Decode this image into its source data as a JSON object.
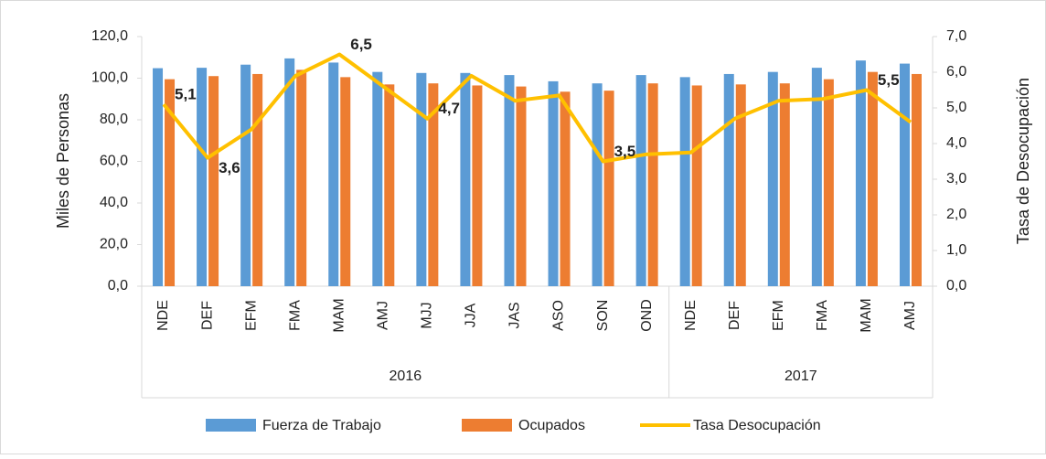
{
  "chart_data": {
    "type": "bar-line",
    "categories": [
      "NDE",
      "DEF",
      "EFM",
      "FMA",
      "MAM",
      "AMJ",
      "MJJ",
      "JJA",
      "JAS",
      "ASO",
      "SON",
      "OND",
      "NDE",
      "DEF",
      "EFM",
      "FMA",
      "MAM",
      "AMJ"
    ],
    "x_groups": [
      {
        "label": "2016",
        "count": 12
      },
      {
        "label": "2017",
        "count": 6
      }
    ],
    "ylabel": "Miles de Personas",
    "y2label": "Tasa de Desocupación",
    "ylim": [
      0,
      120
    ],
    "yticks": [
      {
        "value": 0,
        "label": "0,0"
      },
      {
        "value": 20,
        "label": "20,0"
      },
      {
        "value": 40,
        "label": "40,0"
      },
      {
        "value": 60,
        "label": "60,0"
      },
      {
        "value": 80,
        "label": "80,0"
      },
      {
        "value": 100,
        "label": "100,0"
      },
      {
        "value": 120,
        "label": "120,0"
      }
    ],
    "y2lim": [
      0,
      7
    ],
    "y2ticks": [
      {
        "value": 0,
        "label": "0,0"
      },
      {
        "value": 1,
        "label": "1,0"
      },
      {
        "value": 2,
        "label": "2,0"
      },
      {
        "value": 3,
        "label": "3,0"
      },
      {
        "value": 4,
        "label": "4,0"
      },
      {
        "value": 5,
        "label": "5,0"
      },
      {
        "value": 6,
        "label": "6,0"
      },
      {
        "value": 7,
        "label": "7,0"
      }
    ],
    "series": [
      {
        "name": "Fuerza de Trabajo",
        "type": "bar",
        "color": "#5b9bd5",
        "values": [
          104.8,
          105,
          106.5,
          109.5,
          107.5,
          103,
          102.5,
          102.5,
          101.5,
          98.5,
          97.5,
          101.5,
          100.5,
          102,
          103,
          105,
          108.5,
          107
        ]
      },
      {
        "name": "Ocupados",
        "type": "bar",
        "color": "#ed7d31",
        "values": [
          99.5,
          101,
          102,
          104,
          100.5,
          97,
          97.5,
          96.5,
          96,
          93.5,
          94,
          97.5,
          96.5,
          97,
          97.5,
          99.5,
          103,
          102
        ]
      },
      {
        "name": "Tasa Desocupación",
        "type": "line",
        "axis": "y2",
        "color": "#ffc000",
        "values": [
          5.1,
          3.6,
          4.4,
          5.9,
          6.5,
          5.6,
          4.7,
          5.9,
          5.2,
          5.35,
          3.5,
          3.7,
          3.75,
          4.7,
          5.2,
          5.25,
          5.5,
          4.6
        ],
        "value_labels": [
          "5,1",
          "3,6",
          null,
          null,
          "6,5",
          null,
          "4,7",
          null,
          null,
          null,
          "3,5",
          null,
          null,
          null,
          null,
          null,
          "5,5",
          null
        ]
      }
    ]
  }
}
